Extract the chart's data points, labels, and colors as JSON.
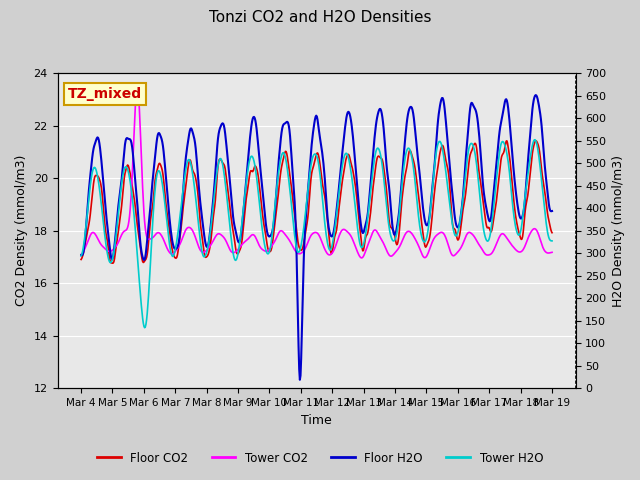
{
  "title": "Tonzi CO2 and H2O Densities",
  "xlabel": "Time",
  "ylabel_left": "CO2 Density (mmol/m3)",
  "ylabel_right": "H2O Density (mmol/m3)",
  "annotation": "TZ_mixed",
  "annotation_color": "#cc0000",
  "annotation_bg": "#ffffcc",
  "annotation_border": "#cc9900",
  "ylim_left": [
    12,
    24
  ],
  "ylim_right": [
    0,
    700
  ],
  "yticks_left": [
    12,
    14,
    16,
    18,
    20,
    22,
    24
  ],
  "yticks_right": [
    0,
    50,
    100,
    150,
    200,
    250,
    300,
    350,
    400,
    450,
    500,
    550,
    600,
    650,
    700
  ],
  "background_color": "#e8e8e8",
  "grid_color": "white",
  "line_colors": {
    "floor_co2": "#dd0000",
    "tower_co2": "#ff00ff",
    "floor_h2o": "#0000cc",
    "tower_h2o": "#00cccc"
  },
  "line_widths": {
    "floor_co2": 1.2,
    "tower_co2": 1.2,
    "floor_h2o": 1.5,
    "tower_h2o": 1.2
  },
  "legend_labels": [
    "Floor CO2",
    "Tower CO2",
    "Floor H2O",
    "Tower H2O"
  ],
  "xtick_labels": [
    "Mar 4",
    "Mar 5",
    "Mar 6",
    "Mar 7",
    "Mar 8",
    "Mar 9",
    "Mar 10",
    "Mar 11",
    "Mar 12",
    "Mar 13",
    "Mar 14",
    "Mar 15",
    "Mar 16",
    "Mar 17",
    "Mar 18",
    "Mar 19"
  ],
  "num_days": 15,
  "points_per_day": 48,
  "seed": 42
}
